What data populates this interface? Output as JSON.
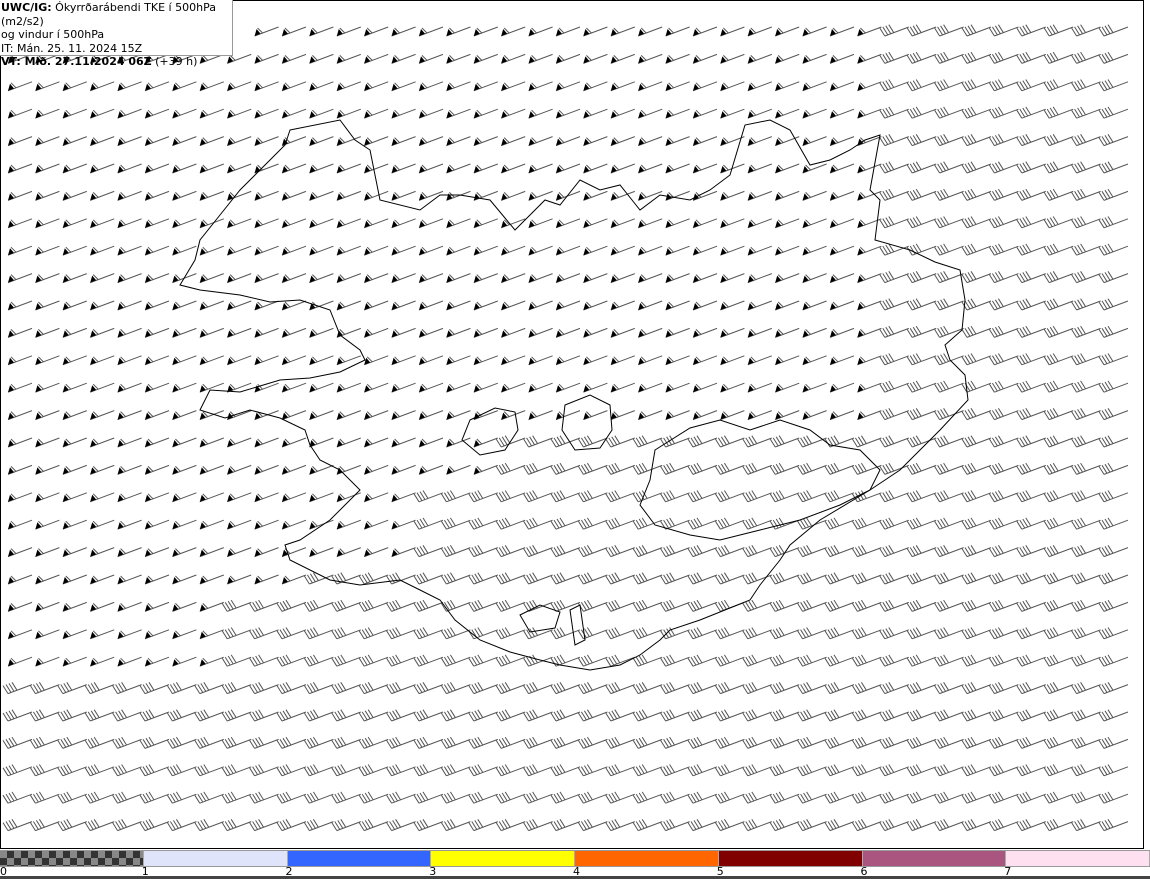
{
  "header": {
    "line1_bold": "UWC/IG:",
    "line1_rest": " Ókyrrðarábendi TKE í 500hPa (m2/s2)",
    "line2": "og vindur í 500hPa",
    "line3": "IT: Mán. 25. 11. 2024 15Z",
    "line4_bold": "VT: Mið. 27.11.2024 06Z",
    "line4_rest": " (+39 h)"
  },
  "legend": {
    "colors": [
      "checker",
      "#e0e4fa",
      "#3366ff",
      "#ffff00",
      "#ff6600",
      "#800000",
      "#aa5580",
      "#ffe0f0"
    ],
    "labels": [
      "0",
      "1",
      "2",
      "3",
      "4",
      "5",
      "6",
      "7"
    ]
  },
  "map": {
    "region": "Iceland",
    "coastline_color": "#000000",
    "barb_color": "#555555"
  }
}
